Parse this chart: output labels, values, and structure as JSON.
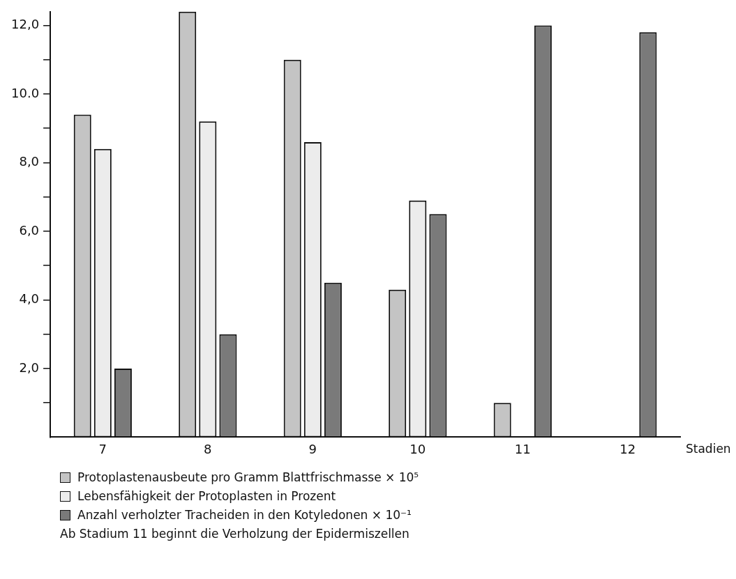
{
  "chart_data": {
    "type": "bar",
    "xlabel": "Stadien",
    "categories": [
      "7",
      "8",
      "9",
      "10",
      "11",
      "12"
    ],
    "series": [
      {
        "name": "Protoplastenausbeute pro Gramm Blattfrischmasse × 10⁵",
        "color": "#c4c4c4",
        "values": [
          9.4,
          12.4,
          11.0,
          4.3,
          1.0,
          0
        ]
      },
      {
        "name": "Lebensfähigkeit der Protoplasten in Prozent",
        "color": "#ececec",
        "values": [
          8.4,
          9.2,
          8.6,
          6.9,
          0,
          0
        ]
      },
      {
        "name": "Anzahl verholzter Tracheiden in den Kotyledonen × 10⁻¹",
        "color": "#7a7a7a",
        "values": [
          2.0,
          3.0,
          4.5,
          6.5,
          12.0,
          11.8
        ]
      }
    ],
    "ylim": [
      0,
      12.4
    ],
    "yticks": [
      {
        "value": 1,
        "label": null
      },
      {
        "value": 2,
        "label": "2,0"
      },
      {
        "value": 3,
        "label": null
      },
      {
        "value": 4,
        "label": "4,0"
      },
      {
        "value": 5,
        "label": null
      },
      {
        "value": 6,
        "label": "6,0"
      },
      {
        "value": 7,
        "label": null
      },
      {
        "value": 8,
        "label": "8,0"
      },
      {
        "value": 9,
        "label": null
      },
      {
        "value": 10,
        "label": "10.0"
      },
      {
        "value": 11,
        "label": null
      },
      {
        "value": 12,
        "label": "12,0"
      }
    ],
    "grid": false,
    "legend": "bottom",
    "annotations": [
      "Ab Stadium 11 beginnt die Verholzung der Epidermiszellen"
    ]
  }
}
